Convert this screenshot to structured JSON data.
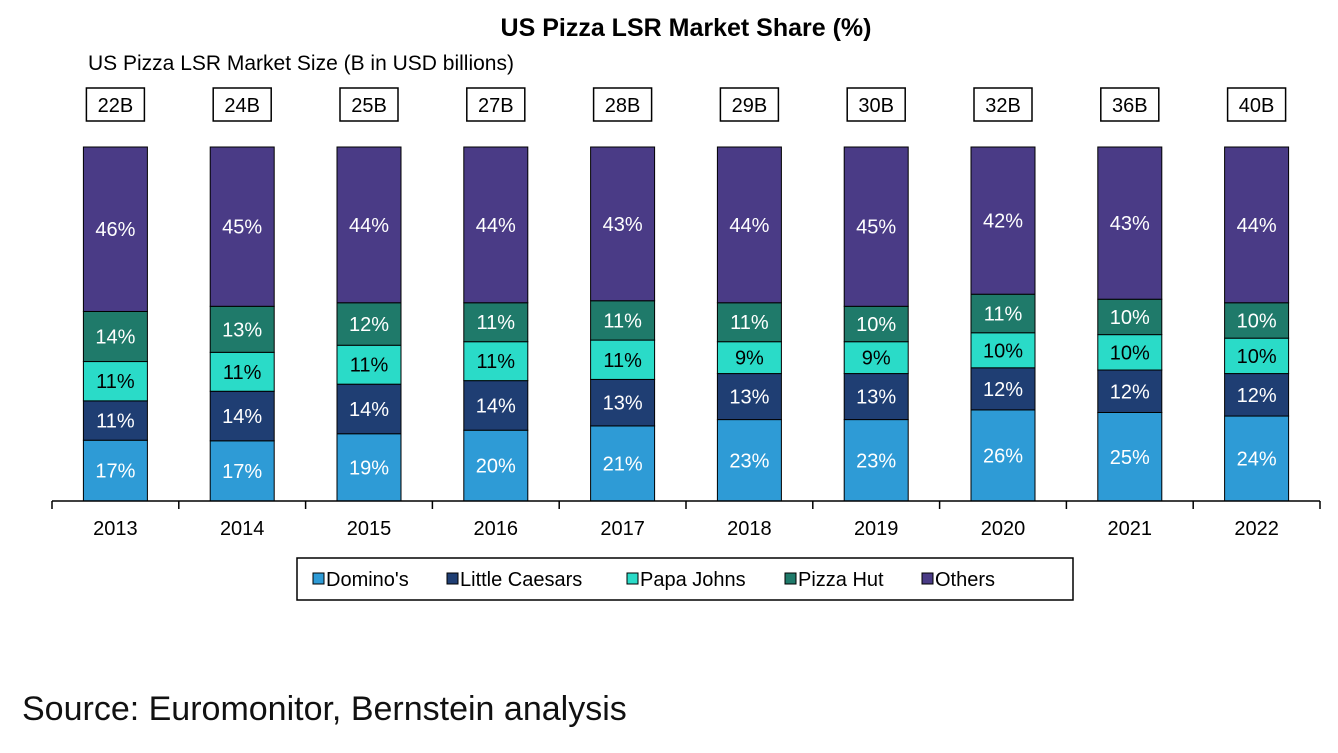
{
  "chart_data": {
    "type": "bar",
    "stacked": true,
    "title": "US Pizza LSR Market Share (%)",
    "subtitle": "US Pizza LSR Market Size (B in USD billions)",
    "categories": [
      "2013",
      "2014",
      "2015",
      "2016",
      "2017",
      "2018",
      "2019",
      "2020",
      "2021",
      "2022"
    ],
    "market_size": [
      "22B",
      "24B",
      "25B",
      "27B",
      "28B",
      "29B",
      "30B",
      "32B",
      "36B",
      "40B"
    ],
    "series": [
      {
        "name": "Domino's",
        "color": "#2E9BD6",
        "values": [
          17,
          17,
          19,
          20,
          21,
          23,
          23,
          26,
          25,
          24
        ]
      },
      {
        "name": "Little Caesars",
        "color": "#1F3E73",
        "values": [
          11,
          14,
          14,
          14,
          13,
          13,
          13,
          12,
          12,
          12
        ]
      },
      {
        "name": "Papa Johns",
        "color": "#2ADBC8",
        "values": [
          11,
          11,
          11,
          11,
          11,
          9,
          9,
          10,
          10,
          10
        ]
      },
      {
        "name": "Pizza Hut",
        "color": "#1F7A6A",
        "values": [
          14,
          13,
          12,
          11,
          11,
          11,
          10,
          11,
          10,
          10
        ]
      },
      {
        "name": "Others",
        "color": "#4A3B86",
        "values": [
          46,
          45,
          44,
          44,
          43,
          44,
          45,
          42,
          43,
          44
        ]
      }
    ],
    "ylim": [
      0,
      100
    ],
    "legend_position": "bottom"
  },
  "source": "Source: Euromonitor, Bernstein analysis"
}
